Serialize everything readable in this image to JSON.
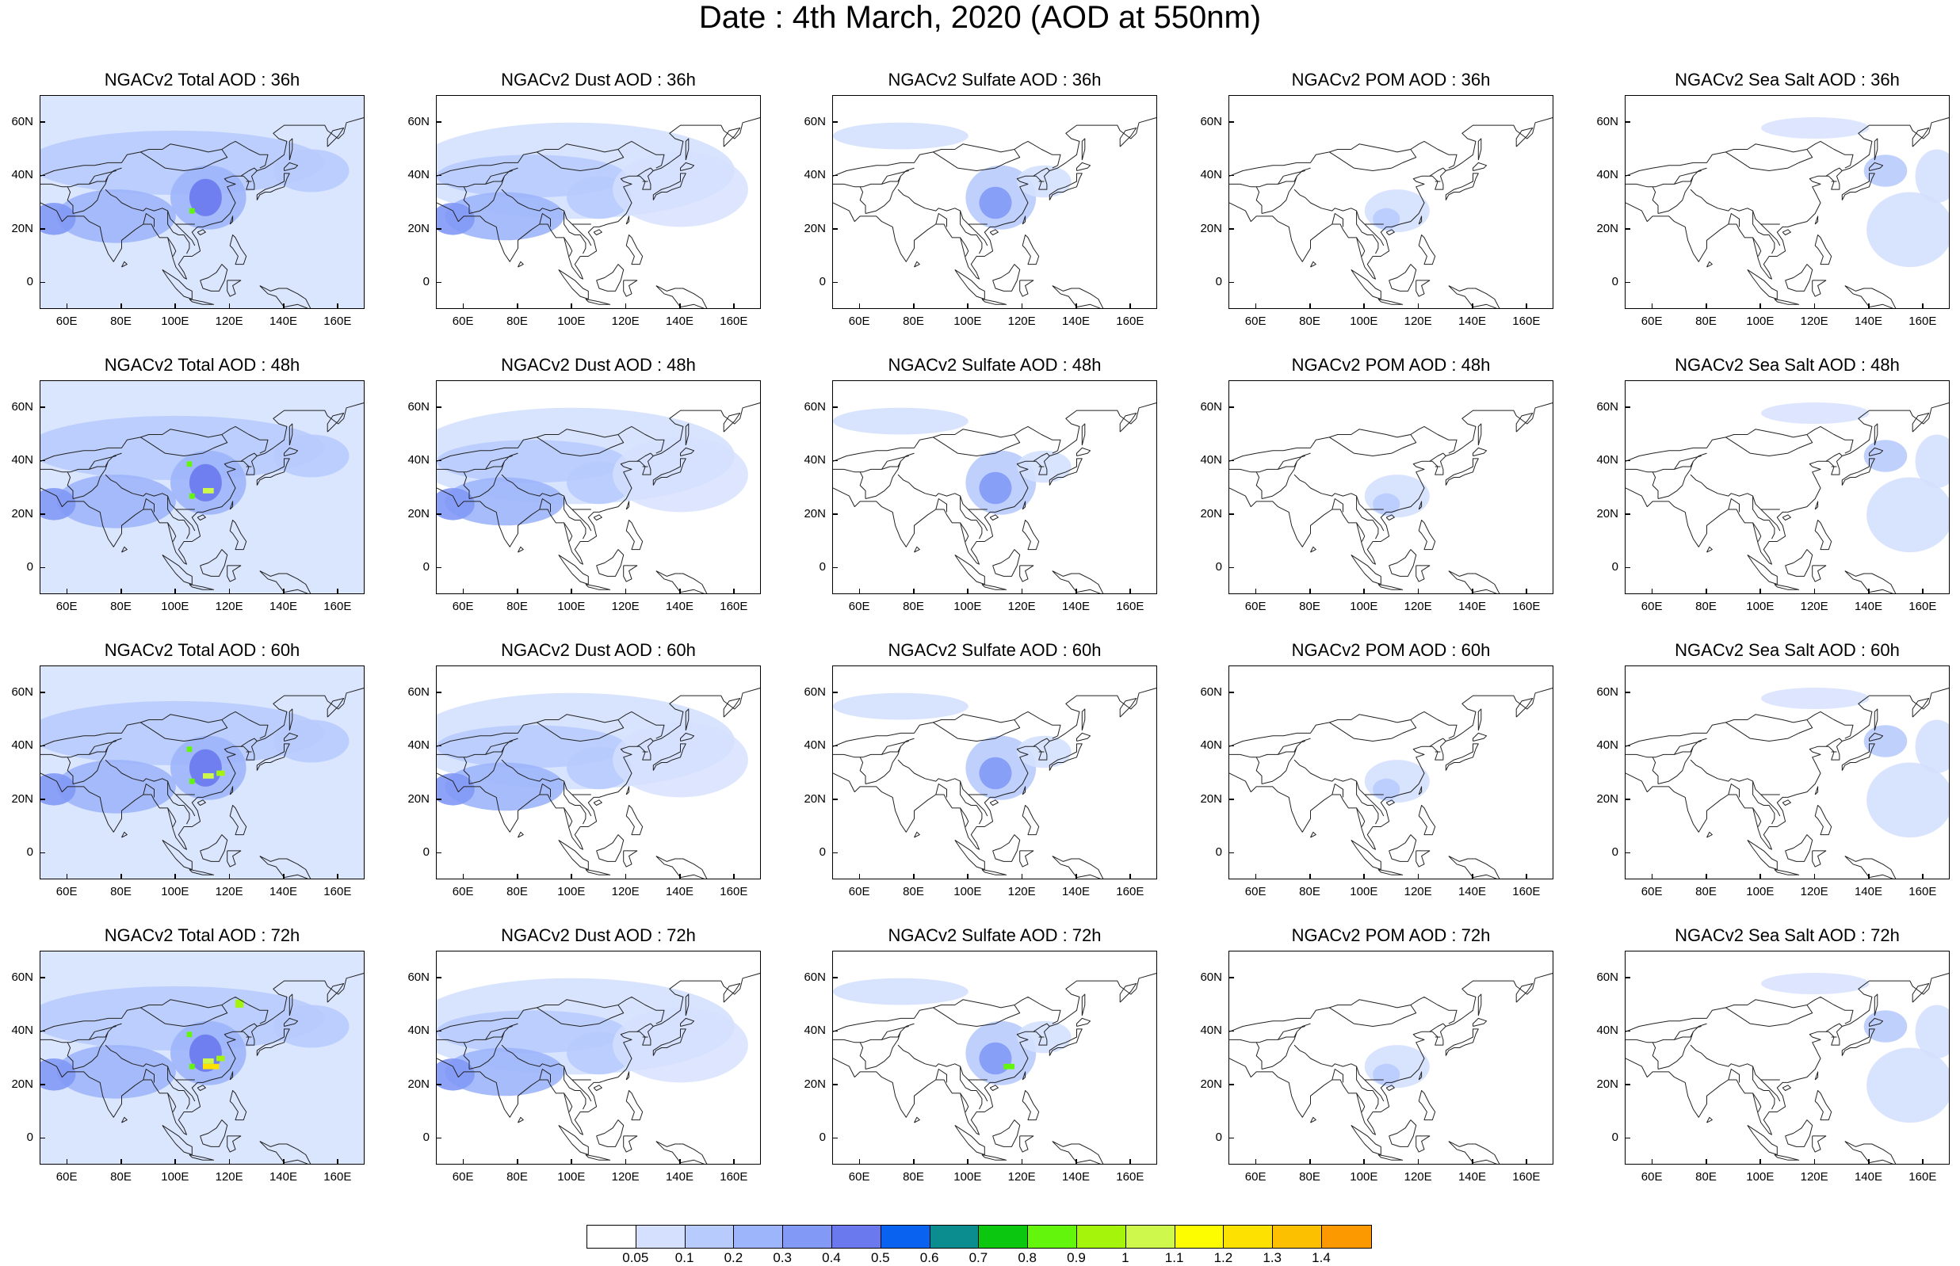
{
  "title": "Date : 4th March, 2020 (AOD at 550nm)",
  "panels": [
    [
      "NGACv2 Total AOD : 36h",
      "NGACv2 Dust AOD : 36h",
      "NGACv2 Sulfate AOD : 36h",
      "NGACv2 POM AOD : 36h",
      "NGACv2 Sea Salt AOD : 36h"
    ],
    [
      "NGACv2 Total AOD : 48h",
      "NGACv2 Dust AOD : 48h",
      "NGACv2 Sulfate AOD : 48h",
      "NGACv2 POM AOD : 48h",
      "NGACv2 Sea Salt AOD : 48h"
    ],
    [
      "NGACv2 Total AOD : 60h",
      "NGACv2 Dust AOD : 60h",
      "NGACv2 Sulfate AOD : 60h",
      "NGACv2 POM AOD : 60h",
      "NGACv2 Sea Salt AOD : 60h"
    ],
    [
      "NGACv2 Total AOD : 72h",
      "NGACv2 Dust AOD : 72h",
      "NGACv2 Sulfate AOD : 72h",
      "NGACv2 POM AOD : 72h",
      "NGACv2 Sea Salt  AOD : 72h"
    ]
  ],
  "axes": {
    "lat_labels": [
      "60N",
      "40N",
      "20N",
      "0"
    ],
    "lon_labels": [
      "60E",
      "80E",
      "100E",
      "120E",
      "140E",
      "160E"
    ],
    "lat_range": [
      -10,
      70
    ],
    "lon_range": [
      50,
      170
    ]
  },
  "colorbar": {
    "colors": [
      "#ffffff",
      "#d4e0fe",
      "#b8cbfd",
      "#9db5fb",
      "#8299f6",
      "#6a79ee",
      "#4f5de2",
      "#0a62f0",
      "#0b8d8f",
      "#0bc710",
      "#63f50c",
      "#a4f50b",
      "#cff84d",
      "#fdfd00",
      "#fde100",
      "#fdc000",
      "#fd9900",
      "#fe7000",
      "#fd1000"
    ],
    "labels": [
      "0.05",
      "0.1",
      "0.2",
      "0.3",
      "0.4",
      "0.5",
      "0.6",
      "0.7",
      "0.8",
      "0.9",
      "1",
      "1.1",
      "1.2",
      "1.3",
      "1.4"
    ]
  }
}
